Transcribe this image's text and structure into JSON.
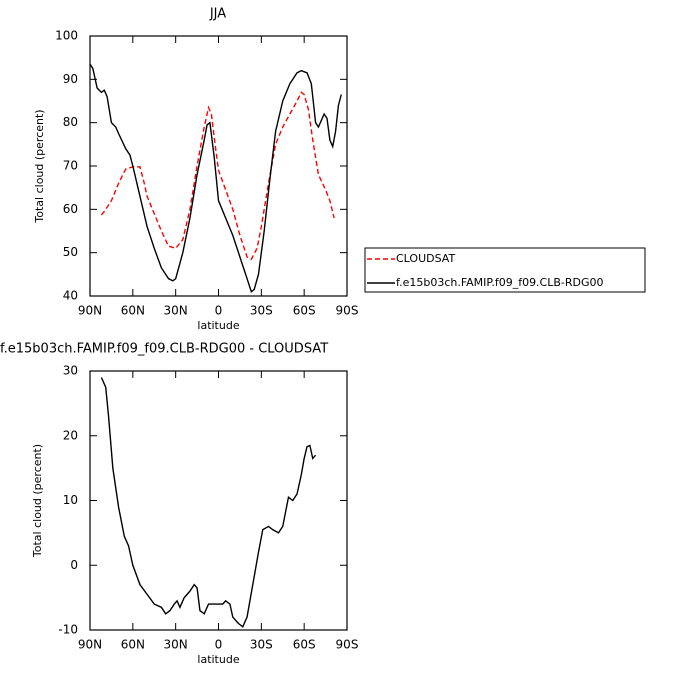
{
  "chart_data": [
    {
      "type": "line",
      "title": "JJA",
      "x_label": "latitude",
      "y_label": "Total cloud (percent)",
      "xlim": [
        90,
        -90
      ],
      "xticks": [
        {
          "value": 90,
          "label": "90N"
        },
        {
          "value": 60,
          "label": "60N"
        },
        {
          "value": 30,
          "label": "30N"
        },
        0,
        {
          "value": -30,
          "label": "30S"
        },
        {
          "value": -60,
          "label": "60S"
        },
        {
          "value": -90,
          "label": "90S"
        }
      ],
      "ylim": [
        40,
        100
      ],
      "yticks": [
        40,
        50,
        60,
        70,
        80,
        90,
        100
      ],
      "legend": "right",
      "series": [
        {
          "name": "CLOUDSAT",
          "color": "#ff0000",
          "line_style": "dashed",
          "x": [
            82,
            80,
            75,
            70,
            65,
            60,
            55,
            52,
            50,
            45,
            40,
            35,
            30,
            25,
            20,
            15,
            10,
            7,
            5,
            2,
            0,
            -5,
            -10,
            -15,
            -20,
            -23,
            -27,
            -30,
            -35,
            -40,
            -45,
            -50,
            -55,
            -58,
            -60,
            -63,
            -66,
            -70,
            -75,
            -78,
            -81
          ],
          "values": [
            58.7,
            59.5,
            62,
            66,
            69.3,
            69.8,
            69.8,
            66,
            63,
            59,
            55,
            51.5,
            51,
            53,
            60,
            70,
            79,
            83.5,
            82,
            74,
            69,
            64.5,
            60,
            54,
            49,
            48.5,
            51,
            56,
            66,
            75,
            79,
            82,
            85,
            87,
            86.5,
            83,
            76,
            68,
            64.5,
            62,
            58
          ]
        },
        {
          "name": "f.e15b03ch.FAMIP.f09_f09.CLB-RDG00",
          "color": "#000000",
          "line_style": "solid",
          "x": [
            90,
            88,
            85,
            82,
            80,
            78,
            75,
            72,
            70,
            65,
            62,
            60,
            55,
            50,
            45,
            40,
            35,
            32,
            30,
            25,
            20,
            15,
            10,
            8,
            6,
            3,
            0,
            -5,
            -10,
            -15,
            -20,
            -23,
            -25,
            -28,
            -32,
            -36,
            -40,
            -45,
            -50,
            -55,
            -58,
            -62,
            -65,
            -68,
            -70,
            -74,
            -76,
            -78,
            -80,
            -82,
            -84,
            -86
          ],
          "values": [
            93.5,
            92.5,
            88,
            87,
            87.5,
            86,
            80,
            79,
            77.5,
            74,
            72.5,
            70,
            63,
            56,
            51,
            46.5,
            44,
            43.5,
            44,
            50,
            58,
            68,
            76,
            79.5,
            80,
            72,
            62,
            58,
            54,
            49,
            44,
            41,
            41.5,
            45,
            55,
            67,
            78,
            85,
            89,
            91.5,
            92,
            91.5,
            89,
            80,
            79,
            82,
            81,
            76,
            74.5,
            78,
            84,
            86.5
          ]
        }
      ]
    },
    {
      "type": "line",
      "title": "f.e15b03ch.FAMIP.f09_f09.CLB-RDG00 - CLOUDSAT",
      "x_label": "latitude",
      "y_label": "Total cloud (percent)",
      "xlim": [
        90,
        -90
      ],
      "xticks": [
        {
          "value": 90,
          "label": "90N"
        },
        {
          "value": 60,
          "label": "60N"
        },
        {
          "value": 30,
          "label": "30N"
        },
        0,
        {
          "value": -30,
          "label": "30S"
        },
        {
          "value": -60,
          "label": "60S"
        },
        {
          "value": -90,
          "label": "90S"
        }
      ],
      "ylim": [
        -10,
        30
      ],
      "yticks": [
        -10,
        0,
        10,
        20,
        30
      ],
      "series": [
        {
          "color": "#000000",
          "line_style": "solid",
          "x": [
            82,
            79,
            77,
            74,
            70,
            66,
            63,
            60,
            55,
            50,
            45,
            40,
            37,
            34,
            31,
            29,
            27,
            24,
            20,
            17,
            15,
            13,
            10,
            7,
            3,
            0,
            -3,
            -5,
            -8,
            -10,
            -14,
            -17,
            -20,
            -24,
            -28,
            -31,
            -35,
            -38,
            -42,
            -45,
            -49,
            -52,
            -55,
            -58,
            -60,
            -62,
            -64,
            -66,
            -68
          ],
          "values": [
            29,
            27.5,
            23,
            15,
            9,
            4.5,
            3,
            0,
            -3,
            -4.5,
            -6,
            -6.5,
            -7.5,
            -7,
            -6,
            -5.5,
            -6.5,
            -5,
            -4,
            -3,
            -3.5,
            -7,
            -7.5,
            -6,
            -6,
            -6,
            -6,
            -5.5,
            -6,
            -8,
            -9,
            -9.5,
            -8,
            -3,
            2,
            5.5,
            6,
            5.5,
            5,
            6,
            10.5,
            10,
            11,
            14,
            16.5,
            18.3,
            18.5,
            16.5,
            17
          ]
        }
      ]
    }
  ]
}
